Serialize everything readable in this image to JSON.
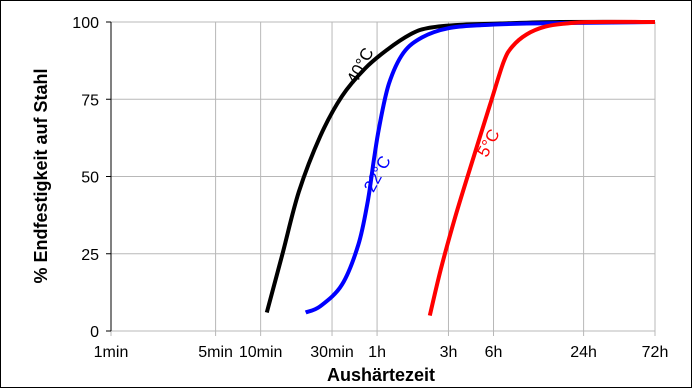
{
  "chart_data": {
    "type": "line",
    "title": "",
    "xlabel": "Aushärtezeit",
    "ylabel": "% Endfestigkeit auf Stahl",
    "x_scale": "log",
    "x_unit": "min",
    "xlim": [
      1,
      4320
    ],
    "ylim": [
      0,
      100
    ],
    "grid": true,
    "x_ticks": [
      {
        "value": 1,
        "label": "1min"
      },
      {
        "value": 5,
        "label": "5min"
      },
      {
        "value": 10,
        "label": "10min"
      },
      {
        "value": 30,
        "label": "30min"
      },
      {
        "value": 60,
        "label": "1h"
      },
      {
        "value": 180,
        "label": "3h"
      },
      {
        "value": 360,
        "label": "6h"
      },
      {
        "value": 1440,
        "label": "24h"
      },
      {
        "value": 4320,
        "label": "72h"
      }
    ],
    "y_ticks": [
      {
        "value": 0,
        "label": "0"
      },
      {
        "value": 25,
        "label": "25"
      },
      {
        "value": 50,
        "label": "50"
      },
      {
        "value": 75,
        "label": "75"
      },
      {
        "value": 100,
        "label": "100"
      }
    ],
    "series": [
      {
        "name": "40°C",
        "color": "#000000",
        "x": [
          11,
          14,
          18,
          25,
          35,
          50,
          70,
          100,
          130,
          200,
          400,
          1000,
          4320
        ],
        "y": [
          6,
          25,
          45,
          63,
          76,
          85,
          91,
          96,
          98,
          99,
          99.5,
          100,
          100
        ],
        "label_at": [
          50,
          85
        ]
      },
      {
        "name": "22°C",
        "color": "#0000ff",
        "x": [
          20,
          25,
          35,
          45,
          52,
          57,
          62,
          72,
          90,
          120,
          180,
          300,
          600,
          4320
        ],
        "y": [
          6,
          8,
          15,
          28,
          42,
          55,
          66,
          80,
          90,
          95,
          98,
          99,
          99.5,
          100
        ],
        "label_at": [
          65,
          50
        ]
      },
      {
        "name": "5°C",
        "color": "#ff0000",
        "x": [
          135,
          160,
          200,
          260,
          340,
          420,
          480,
          600,
          800,
          1100,
          1600,
          4320
        ],
        "y": [
          5,
          20,
          37,
          55,
          73,
          87,
          92,
          96,
          98.5,
          99.5,
          100,
          100
        ],
        "label_at": [
          360,
          60
        ]
      }
    ]
  }
}
